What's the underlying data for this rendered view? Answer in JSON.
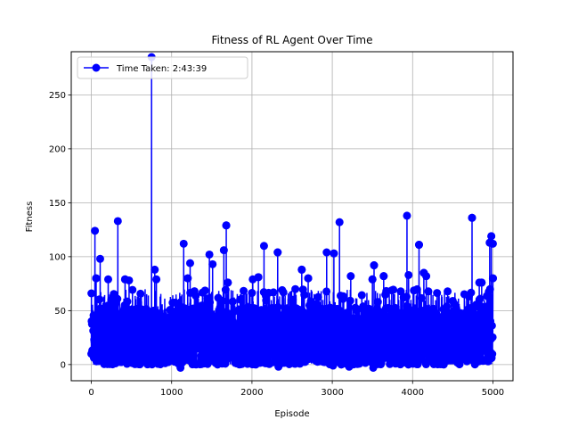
{
  "chart_data": {
    "type": "line",
    "title": "Fitness of RL Agent Over Time",
    "xlabel": "Episode",
    "ylabel": "Fitness",
    "xlim": [
      -250,
      5250
    ],
    "ylim": [
      -15,
      290
    ],
    "xticks": [
      0,
      1000,
      2000,
      3000,
      4000,
      5000
    ],
    "yticks": [
      0,
      50,
      100,
      150,
      200,
      250
    ],
    "grid": true,
    "legend_position": "top-left",
    "series": [
      {
        "name": "Time Taken: 2:43:39",
        "color": "#0000ff",
        "marker": "circle",
        "episodes": 5000,
        "approx_typical_range": [
          0,
          70
        ],
        "notable_points": [
          {
            "x": 1,
            "y": 66
          },
          {
            "x": 45,
            "y": 124
          },
          {
            "x": 60,
            "y": 80
          },
          {
            "x": 110,
            "y": 98
          },
          {
            "x": 210,
            "y": 79
          },
          {
            "x": 330,
            "y": 133
          },
          {
            "x": 420,
            "y": 79
          },
          {
            "x": 470,
            "y": 78
          },
          {
            "x": 750,
            "y": 285
          },
          {
            "x": 790,
            "y": 88
          },
          {
            "x": 810,
            "y": 79
          },
          {
            "x": 1110,
            "y": -3
          },
          {
            "x": 1150,
            "y": 112
          },
          {
            "x": 1200,
            "y": 80
          },
          {
            "x": 1230,
            "y": 94
          },
          {
            "x": 1470,
            "y": 102
          },
          {
            "x": 1510,
            "y": 93
          },
          {
            "x": 1650,
            "y": 106
          },
          {
            "x": 1680,
            "y": 129
          },
          {
            "x": 1700,
            "y": 76
          },
          {
            "x": 2010,
            "y": 79
          },
          {
            "x": 2080,
            "y": 81
          },
          {
            "x": 2150,
            "y": 110
          },
          {
            "x": 2320,
            "y": 104
          },
          {
            "x": 2330,
            "y": -2
          },
          {
            "x": 2620,
            "y": 88
          },
          {
            "x": 2700,
            "y": 80
          },
          {
            "x": 2930,
            "y": 104
          },
          {
            "x": 3020,
            "y": 103
          },
          {
            "x": 3010,
            "y": -1
          },
          {
            "x": 3090,
            "y": 132
          },
          {
            "x": 3210,
            "y": -2
          },
          {
            "x": 3230,
            "y": 82
          },
          {
            "x": 3500,
            "y": 79
          },
          {
            "x": 3520,
            "y": 92
          },
          {
            "x": 3510,
            "y": -3
          },
          {
            "x": 3640,
            "y": 82
          },
          {
            "x": 3930,
            "y": 138
          },
          {
            "x": 3950,
            "y": 83
          },
          {
            "x": 4080,
            "y": 111
          },
          {
            "x": 4140,
            "y": 85
          },
          {
            "x": 4170,
            "y": 82
          },
          {
            "x": 4740,
            "y": 136
          },
          {
            "x": 4830,
            "y": 76
          },
          {
            "x": 4860,
            "y": 76
          },
          {
            "x": 4960,
            "y": 113
          },
          {
            "x": 4980,
            "y": 119
          },
          {
            "x": 5000,
            "y": 112
          },
          {
            "x": 5000,
            "y": 80
          }
        ]
      }
    ]
  }
}
